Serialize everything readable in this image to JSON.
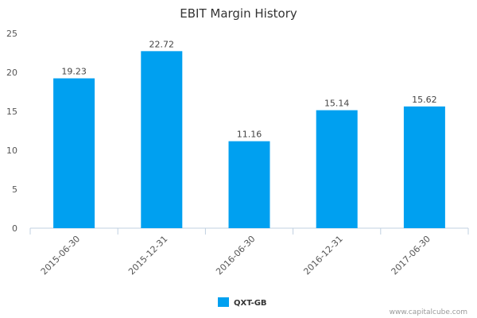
{
  "chart_data": {
    "type": "bar",
    "title": "EBIT Margin History",
    "xlabel": "",
    "ylabel": "",
    "categories": [
      "2015-06-30",
      "2015-12-31",
      "2016-06-30",
      "2016-12-31",
      "2017-06-30"
    ],
    "series": [
      {
        "name": "QXT-GB",
        "values": [
          19.23,
          22.72,
          11.16,
          15.14,
          15.62
        ],
        "color": "#00a0f0"
      }
    ],
    "data_labels": [
      "19.23",
      "22.72",
      "11.16",
      "15.14",
      "15.62"
    ],
    "ylim": [
      0,
      25
    ],
    "yticks": [
      0,
      5,
      10,
      15,
      20,
      25
    ],
    "grid": false,
    "legend": "bottom-center"
  },
  "credit": "www.capitalcube.com"
}
